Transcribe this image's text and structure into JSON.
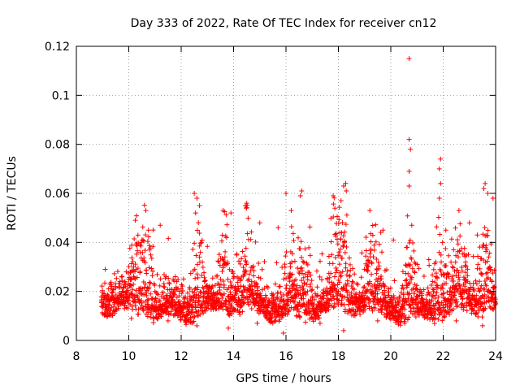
{
  "chart_data": {
    "type": "scatter",
    "title": "Day 333 of 2022, Rate Of TEC Index for receiver cn12",
    "xlabel": "GPS time / hours",
    "ylabel": "ROTI / TECUs",
    "xlim": [
      8,
      24
    ],
    "ylim": [
      0,
      0.12
    ],
    "x_ticks": [
      8,
      10,
      12,
      14,
      16,
      18,
      20,
      22,
      24
    ],
    "x_tick_labels": [
      "8",
      "10",
      "12",
      "14",
      "16",
      "18",
      "20",
      "22",
      "24"
    ],
    "y_ticks": [
      0,
      0.02,
      0.04,
      0.06,
      0.08,
      0.1,
      0.12
    ],
    "y_tick_labels": [
      "0",
      "0.02",
      "0.04",
      "0.06",
      "0.08",
      "0.1",
      "0.12"
    ],
    "grid": true,
    "marker": "+",
    "color": "#ff0000",
    "series": [
      {
        "name": "ROTI",
        "note": "dense scatter of ~many points between hour 9 and 24; listed points are notable/representative samples",
        "points": [
          [
            20.7,
            0.115
          ],
          [
            20.7,
            0.082
          ],
          [
            20.75,
            0.078
          ],
          [
            20.7,
            0.069
          ],
          [
            20.7,
            0.063
          ],
          [
            21.9,
            0.074
          ],
          [
            21.85,
            0.07
          ],
          [
            21.9,
            0.064
          ],
          [
            21.85,
            0.058
          ],
          [
            12.5,
            0.06
          ],
          [
            12.6,
            0.058
          ],
          [
            12.7,
            0.055
          ],
          [
            12.55,
            0.052
          ],
          [
            14.5,
            0.056
          ],
          [
            14.45,
            0.055
          ],
          [
            16.0,
            0.06
          ],
          [
            16.6,
            0.061
          ],
          [
            16.55,
            0.059
          ],
          [
            18.2,
            0.063
          ],
          [
            18.3,
            0.061
          ],
          [
            17.8,
            0.059
          ],
          [
            18.1,
            0.057
          ],
          [
            23.6,
            0.064
          ],
          [
            23.55,
            0.062
          ],
          [
            23.7,
            0.06
          ],
          [
            23.9,
            0.058
          ],
          [
            10.25,
            0.049
          ],
          [
            10.65,
            0.053
          ],
          [
            11.2,
            0.047
          ],
          [
            10.75,
            0.045
          ],
          [
            13.6,
            0.053
          ],
          [
            13.9,
            0.052
          ],
          [
            15.0,
            0.048
          ],
          [
            15.7,
            0.046
          ],
          [
            16.2,
            0.053
          ],
          [
            19.2,
            0.053
          ],
          [
            19.7,
            0.045
          ],
          [
            20.1,
            0.041
          ],
          [
            20.8,
            0.047
          ],
          [
            22.1,
            0.045
          ],
          [
            22.6,
            0.053
          ],
          [
            23.0,
            0.048
          ],
          [
            23.3,
            0.043
          ],
          [
            9.1,
            0.029
          ],
          [
            9.5,
            0.022
          ],
          [
            10.0,
            0.025
          ],
          [
            11.0,
            0.02
          ],
          [
            12.0,
            0.021
          ],
          [
            13.0,
            0.018
          ],
          [
            14.0,
            0.017
          ],
          [
            15.0,
            0.016
          ],
          [
            16.0,
            0.015
          ],
          [
            17.0,
            0.018
          ],
          [
            18.0,
            0.02
          ],
          [
            19.0,
            0.017
          ],
          [
            20.0,
            0.016
          ],
          [
            21.0,
            0.018
          ],
          [
            22.0,
            0.019
          ],
          [
            23.0,
            0.02
          ],
          [
            24.0,
            0.015
          ],
          [
            9.2,
            0.01
          ],
          [
            10.1,
            0.009
          ],
          [
            11.5,
            0.008
          ],
          [
            12.6,
            0.006
          ],
          [
            13.8,
            0.005
          ],
          [
            14.9,
            0.007
          ],
          [
            15.9,
            0.003
          ],
          [
            17.3,
            0.007
          ],
          [
            18.2,
            0.004
          ],
          [
            19.5,
            0.008
          ],
          [
            20.4,
            0.01
          ],
          [
            21.4,
            0.009
          ],
          [
            22.5,
            0.008
          ],
          [
            23.5,
            0.006
          ]
        ],
        "density": {
          "x_range": [
            8.95,
            24.0
          ],
          "mean_start": 0.014,
          "waveform_hours_peaks": [
            10.3,
            10.7,
            12.6,
            13.7,
            14.5,
            16.2,
            16.7,
            17.9,
            18.2,
            19.3,
            20.7,
            21.9,
            22.6,
            23.6
          ]
        }
      }
    ]
  }
}
